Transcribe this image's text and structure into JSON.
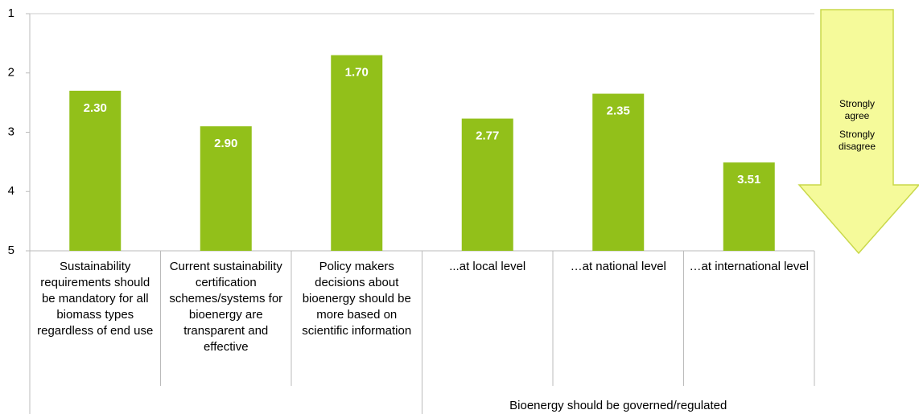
{
  "chart_data": {
    "type": "bar",
    "categories": [
      "Sustainability requirements should be mandatory for all biomass types regardless of end use",
      "Current sustainability certification schemes/systems for bioenergy are transparent and effective",
      "Policy makers decisions about bioenergy should be more based on scientific information",
      "...at local level",
      "…at national level",
      "…at international level"
    ],
    "values": [
      2.3,
      2.9,
      1.7,
      2.77,
      2.35,
      3.51
    ],
    "value_labels": [
      "2.30",
      "2.90",
      "1.70",
      "2.77",
      "2.35",
      "3.51"
    ],
    "color": "#92c01a",
    "ylim": [
      5,
      1
    ],
    "yticks": [
      1,
      2,
      3,
      4,
      5
    ],
    "group_label": "Bioenergy should be governed/regulated",
    "annotations": [
      "Strongly agree",
      "Strongly disagree"
    ]
  }
}
